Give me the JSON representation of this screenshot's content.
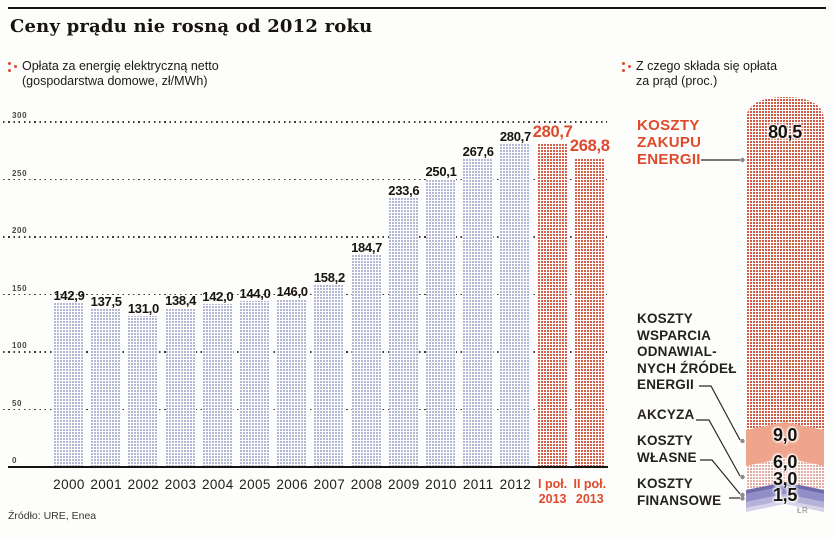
{
  "page": {
    "title": "Ceny prądu nie rosną od 2012 roku",
    "source": "Źródło: URE, Enea",
    "credit": "ŁR"
  },
  "left_chart": {
    "legend": "Opłata za energię elektryczną netto\n(gospodarstwa domowe, zł/MWh)"
  },
  "right_chart": {
    "legend": "Z czego składa się opłata\nza prąd (proc.)",
    "labels": {
      "zakup": "KOSZTY\nZAKUPU\nENERGII",
      "oze": "KOSZTY\nWSPARCIA\nODNAWIAL-\nNYCH ŹRÓDEŁ\nENERGII",
      "akcyza": "AKCYZA",
      "wlasne": "KOSZTY\nWŁASNE",
      "finansowe": "KOSZTY\nFINANSOWE"
    },
    "values": {
      "zakup": "80,5",
      "oze": "9,0",
      "akcyza": "6,0",
      "wlasne": "3,0",
      "finansowe": "1,5"
    }
  },
  "chart_data": [
    {
      "type": "bar",
      "title": "Opłata za energię elektryczną netto (gospodarstwa domowe, zł/MWh)",
      "categories": [
        "2000",
        "2001",
        "2002",
        "2003",
        "2004",
        "2005",
        "2006",
        "2007",
        "2008",
        "2009",
        "2010",
        "2011",
        "2012",
        "I poł.\n2013",
        "II poł.\n2013"
      ],
      "values": [
        142.9,
        137.5,
        131.0,
        138.4,
        142.0,
        144.0,
        146.0,
        158.2,
        184.7,
        233.6,
        250.1,
        267.6,
        280.7,
        280.7,
        268.8
      ],
      "value_labels": [
        "142,9",
        "137,5",
        "131,0",
        "138,4",
        "142,0",
        "144,0",
        "146,0",
        "158,2",
        "184,7",
        "233,6",
        "250,1",
        "267,6",
        "280,7",
        "280,7",
        "268,8"
      ],
      "highlight_from_index": 13,
      "xlabel": "",
      "ylabel": "zł/MWh",
      "ylim": [
        0,
        300
      ],
      "ytick_step": 50,
      "grid": "dotted horizontal",
      "legend_position": "top-left"
    },
    {
      "type": "bar",
      "subtype": "stacked-percentage",
      "title": "Z czego składa się opłata za prąd (proc.)",
      "categories": [
        "opłata za prąd"
      ],
      "series": [
        {
          "name": "KOSZTY ZAKUPU ENERGII",
          "values": [
            80.5
          ]
        },
        {
          "name": "KOSZTY WSPARCIA ODNAWIALNYCH ŹRÓDEŁ ENERGII",
          "values": [
            9.0
          ]
        },
        {
          "name": "AKCYZA",
          "values": [
            6.0
          ]
        },
        {
          "name": "KOSZTY WŁASNE",
          "values": [
            3.0
          ]
        },
        {
          "name": "KOSZTY FINANSOWE",
          "values": [
            1.5
          ]
        }
      ],
      "ylim": [
        0,
        100
      ],
      "grid": "off",
      "legend_position": "left-callouts"
    }
  ],
  "colors": {
    "accent": "#de4a2c",
    "bar_blue": "#b4b7d5",
    "bar_red": "#d2604b",
    "pattern_red": "#cf5c46",
    "pattern_pink": "#e3aca0",
    "salmon": "#efa48c",
    "purple_dark": "#6f6aac",
    "purple": "#918dc6",
    "purple_light": "#b5b1d8",
    "purple_pale": "#d5d2e9",
    "white": "#ffffff"
  }
}
